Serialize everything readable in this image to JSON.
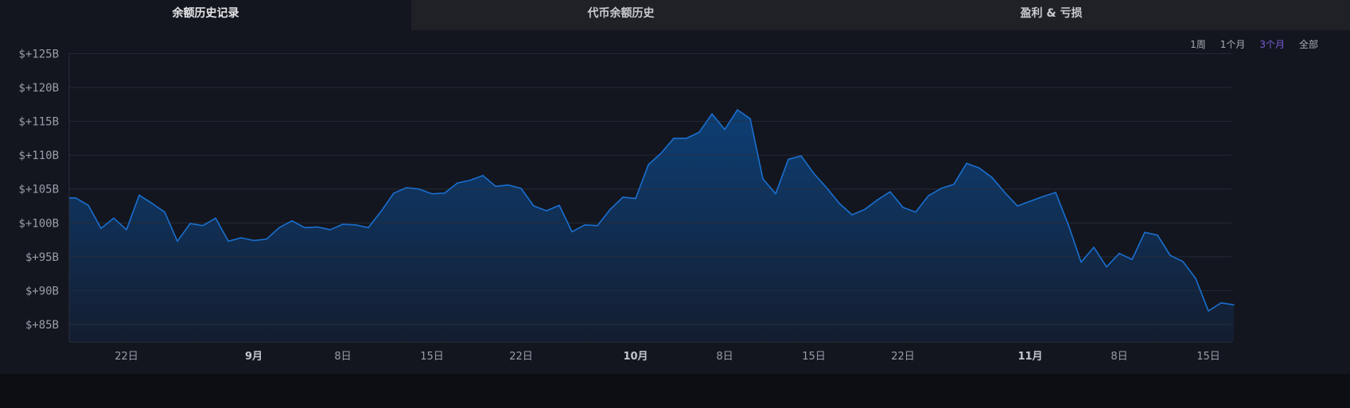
{
  "tabs": [
    {
      "label": "余额历史记录",
      "active": true
    },
    {
      "label": "代币余额历史",
      "active": false
    },
    {
      "label": "盈利 & 亏损",
      "active": false
    }
  ],
  "ranges": [
    {
      "label": "1周",
      "active": false
    },
    {
      "label": "1个月",
      "active": false
    },
    {
      "label": "3个月",
      "active": true
    },
    {
      "label": "全部",
      "active": false
    }
  ],
  "colors": {
    "line": "#1a6fd0",
    "fill_top": "#0d3f75",
    "fill_bottom": "#141d30",
    "active_range": "#7b5cd6",
    "background": "#13161f"
  },
  "chart_data": {
    "type": "area",
    "grid": true,
    "ylim": [
      82.5,
      125
    ],
    "y_ticks": [
      {
        "value": 125,
        "label": "$+125B"
      },
      {
        "value": 120,
        "label": "$+120B"
      },
      {
        "value": 115,
        "label": "$+115B"
      },
      {
        "value": 110,
        "label": "$+110B"
      },
      {
        "value": 105,
        "label": "$+105B"
      },
      {
        "value": 100,
        "label": "$+100B"
      },
      {
        "value": 95,
        "label": "$+95B"
      },
      {
        "value": 90,
        "label": "$+90B"
      },
      {
        "value": 85,
        "label": "$+85B"
      }
    ],
    "x_ticks": [
      {
        "date": "08-22",
        "label": "22日",
        "bold": false
      },
      {
        "date": "09-01",
        "label": "9月",
        "bold": true
      },
      {
        "date": "09-08",
        "label": "8日",
        "bold": false
      },
      {
        "date": "09-15",
        "label": "15日",
        "bold": false
      },
      {
        "date": "09-22",
        "label": "22日",
        "bold": false
      },
      {
        "date": "10-01",
        "label": "10月",
        "bold": true
      },
      {
        "date": "10-08",
        "label": "8日",
        "bold": false
      },
      {
        "date": "10-15",
        "label": "15日",
        "bold": false
      },
      {
        "date": "10-22",
        "label": "22日",
        "bold": false
      },
      {
        "date": "11-01",
        "label": "11月",
        "bold": true
      },
      {
        "date": "11-08",
        "label": "8日",
        "bold": false
      },
      {
        "date": "11-15",
        "label": "15日",
        "bold": false
      }
    ],
    "x_range": [
      "08-18",
      "11-17"
    ],
    "unit": "B USD",
    "points": [
      [
        "08-18",
        103.7
      ],
      [
        "08-19",
        102.6
      ],
      [
        "08-20",
        99.2
      ],
      [
        "08-21",
        100.7
      ],
      [
        "08-22",
        99.0
      ],
      [
        "08-23",
        104.1
      ],
      [
        "08-24",
        102.9
      ],
      [
        "08-25",
        101.6
      ],
      [
        "08-26",
        97.3
      ],
      [
        "08-27",
        99.9
      ],
      [
        "08-28",
        99.6
      ],
      [
        "08-29",
        100.7
      ],
      [
        "08-30",
        97.3
      ],
      [
        "08-31",
        97.8
      ],
      [
        "09-01",
        97.4
      ],
      [
        "09-02",
        97.6
      ],
      [
        "09-03",
        99.3
      ],
      [
        "09-04",
        100.3
      ],
      [
        "09-05",
        99.3
      ],
      [
        "09-06",
        99.4
      ],
      [
        "09-07",
        99.0
      ],
      [
        "09-08",
        99.8
      ],
      [
        "09-09",
        99.7
      ],
      [
        "09-10",
        99.3
      ],
      [
        "09-11",
        101.7
      ],
      [
        "09-12",
        104.4
      ],
      [
        "09-13",
        105.2
      ],
      [
        "09-14",
        105.0
      ],
      [
        "09-15",
        104.3
      ],
      [
        "09-16",
        104.4
      ],
      [
        "09-17",
        105.9
      ],
      [
        "09-18",
        106.3
      ],
      [
        "09-19",
        107.0
      ],
      [
        "09-20",
        105.4
      ],
      [
        "09-21",
        105.6
      ],
      [
        "09-22",
        105.1
      ],
      [
        "09-23",
        102.5
      ],
      [
        "09-24",
        101.8
      ],
      [
        "09-25",
        102.6
      ],
      [
        "09-26",
        98.7
      ],
      [
        "09-27",
        99.7
      ],
      [
        "09-28",
        99.6
      ],
      [
        "09-29",
        102.0
      ],
      [
        "09-30",
        103.8
      ],
      [
        "10-01",
        103.6
      ],
      [
        "10-02",
        108.6
      ],
      [
        "10-03",
        110.3
      ],
      [
        "10-04",
        112.5
      ],
      [
        "10-05",
        112.5
      ],
      [
        "10-06",
        113.4
      ],
      [
        "10-07",
        116.1
      ],
      [
        "10-08",
        113.8
      ],
      [
        "10-09",
        116.7
      ],
      [
        "10-10",
        115.4
      ],
      [
        "10-11",
        106.5
      ],
      [
        "10-12",
        104.3
      ],
      [
        "10-13",
        109.4
      ],
      [
        "10-14",
        109.9
      ],
      [
        "10-15",
        107.3
      ],
      [
        "10-16",
        105.2
      ],
      [
        "10-17",
        102.9
      ],
      [
        "10-18",
        101.2
      ],
      [
        "10-19",
        102.0
      ],
      [
        "10-20",
        103.4
      ],
      [
        "10-21",
        104.6
      ],
      [
        "10-22",
        102.3
      ],
      [
        "10-23",
        101.6
      ],
      [
        "10-24",
        104.0
      ],
      [
        "10-25",
        105.1
      ],
      [
        "10-26",
        105.7
      ],
      [
        "10-27",
        108.8
      ],
      [
        "10-28",
        108.1
      ],
      [
        "10-29",
        106.7
      ],
      [
        "10-30",
        104.5
      ],
      [
        "10-31",
        102.5
      ],
      [
        "11-01",
        103.2
      ],
      [
        "11-02",
        103.9
      ],
      [
        "11-03",
        104.5
      ],
      [
        "11-04",
        99.7
      ],
      [
        "11-05",
        94.2
      ],
      [
        "11-06",
        96.4
      ],
      [
        "11-07",
        93.5
      ],
      [
        "11-08",
        95.5
      ],
      [
        "11-09",
        94.6
      ],
      [
        "11-10",
        98.6
      ],
      [
        "11-11",
        98.2
      ],
      [
        "11-12",
        95.2
      ],
      [
        "11-13",
        94.3
      ],
      [
        "11-14",
        91.8
      ],
      [
        "11-15",
        87.0
      ],
      [
        "11-16",
        88.2
      ],
      [
        "11-17",
        87.9
      ]
    ]
  }
}
